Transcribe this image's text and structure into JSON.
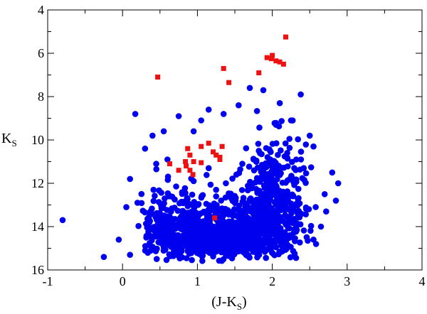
{
  "chart_data": {
    "type": "scatter",
    "xlabel": {
      "prefix": "(J-K",
      "sub": "S",
      "suffix": ")"
    },
    "ylabel": {
      "main": "K",
      "sub": "S"
    },
    "xlim": [
      -1,
      4
    ],
    "ylim": [
      16,
      4
    ],
    "y_inverted": true,
    "x_ticks": [
      -1,
      0,
      1,
      2,
      3,
      4
    ],
    "y_ticks": [
      4,
      6,
      8,
      10,
      12,
      14,
      16
    ],
    "x_tick_labels": [
      "-1",
      "0",
      "1",
      "2",
      "3",
      "4"
    ],
    "y_tick_labels": [
      "4",
      "6",
      "8",
      "10",
      "12",
      "14",
      "16"
    ],
    "grid": false,
    "colors": {
      "blue_series": "#0000ee",
      "red_series": "#ee1111"
    },
    "series": [
      {
        "marker": "circle",
        "color": "#0000ee",
        "points": [
          [
            -0.8,
            13.7
          ],
          [
            -0.25,
            15.4
          ],
          [
            0.17,
            8.8
          ],
          [
            0.3,
            10.4
          ],
          [
            0.4,
            9.8
          ],
          [
            0.6,
            10.9
          ],
          [
            0.75,
            8.9
          ],
          [
            0.95,
            9.6
          ],
          [
            1.05,
            9.1
          ],
          [
            1.15,
            8.6
          ],
          [
            1.35,
            8.8
          ],
          [
            1.55,
            8.4
          ],
          [
            1.7,
            7.6
          ],
          [
            1.88,
            7.7
          ],
          [
            2.1,
            8.3
          ],
          [
            2.38,
            7.9
          ],
          [
            2.05,
            9.3
          ],
          [
            2.25,
            9.1
          ],
          [
            2.5,
            9.8
          ],
          [
            2.55,
            10.3
          ],
          [
            2.8,
            11.5
          ],
          [
            2.88,
            12.0
          ],
          [
            2.7,
            12.5
          ],
          [
            2.85,
            12.8
          ],
          [
            2.72,
            13.3
          ],
          [
            2.65,
            14.0
          ],
          [
            2.55,
            14.6
          ],
          [
            0.1,
            11.8
          ],
          [
            0.2,
            12.9
          ],
          [
            0.05,
            13.1
          ],
          [
            -0.05,
            14.6
          ],
          [
            0.1,
            15.3
          ],
          [
            0.45,
            11.1
          ],
          [
            0.55,
            9.6
          ],
          [
            0.62,
            12.6
          ],
          [
            1.25,
            12.3
          ],
          [
            1.38,
            12.0
          ],
          [
            1.42,
            12.6
          ],
          [
            1.6,
            11.1
          ],
          [
            1.52,
            11.6
          ],
          [
            1.15,
            11.3
          ],
          [
            0.95,
            11.9
          ],
          [
            1.82,
            10.5
          ],
          [
            1.75,
            10.9
          ],
          [
            2.2,
            10.6
          ],
          [
            2.32,
            10.9
          ],
          [
            2.42,
            11.3
          ]
        ]
      },
      {
        "marker": "square",
        "color": "#ee1111",
        "points": [
          [
            2.18,
            5.25
          ],
          [
            2.0,
            6.1
          ],
          [
            1.93,
            6.2
          ],
          [
            1.99,
            6.25
          ],
          [
            2.05,
            6.35
          ],
          [
            2.1,
            6.4
          ],
          [
            2.15,
            6.5
          ],
          [
            1.82,
            6.9
          ],
          [
            0.47,
            7.1
          ],
          [
            1.35,
            6.7
          ],
          [
            1.42,
            7.35
          ],
          [
            1.15,
            10.15
          ],
          [
            1.05,
            10.3
          ],
          [
            1.33,
            10.3
          ],
          [
            0.87,
            10.4
          ],
          [
            1.21,
            10.55
          ],
          [
            1.25,
            10.7
          ],
          [
            0.9,
            10.7
          ],
          [
            0.95,
            11.0
          ],
          [
            0.84,
            11.0
          ],
          [
            1.3,
            10.8
          ],
          [
            1.3,
            10.9
          ],
          [
            1.05,
            11.05
          ],
          [
            0.63,
            11.1
          ],
          [
            0.85,
            11.2
          ],
          [
            0.9,
            11.4
          ],
          [
            0.75,
            11.4
          ],
          [
            0.94,
            11.6
          ],
          [
            1.23,
            13.6
          ]
        ]
      }
    ],
    "clouds": [
      {
        "cx": 0.95,
        "cy": 14.3,
        "sx": 0.42,
        "sy": 0.55,
        "n": 600,
        "xmin": 0.3,
        "xmax": 1.9,
        "ymin": 12.2,
        "ymax": 15.6
      },
      {
        "cx": 1.85,
        "cy": 13.9,
        "sx": 0.28,
        "sy": 0.75,
        "n": 520,
        "xmin": 1.0,
        "xmax": 2.7,
        "ymin": 11.6,
        "ymax": 15.5
      },
      {
        "cx": 2.05,
        "cy": 11.6,
        "sx": 0.2,
        "sy": 1.0,
        "n": 170,
        "xmin": 1.55,
        "xmax": 2.55,
        "ymin": 8.6,
        "ymax": 14.0
      },
      {
        "cx": 1.45,
        "cy": 14.5,
        "sx": 0.35,
        "sy": 0.45,
        "n": 260,
        "xmin": 0.9,
        "xmax": 2.2,
        "ymin": 13.2,
        "ymax": 15.5
      },
      {
        "cx": 0.65,
        "cy": 13.3,
        "sx": 0.35,
        "sy": 0.9,
        "n": 110,
        "xmin": 0.2,
        "xmax": 1.3,
        "ymin": 11.2,
        "ymax": 15.6
      }
    ]
  }
}
